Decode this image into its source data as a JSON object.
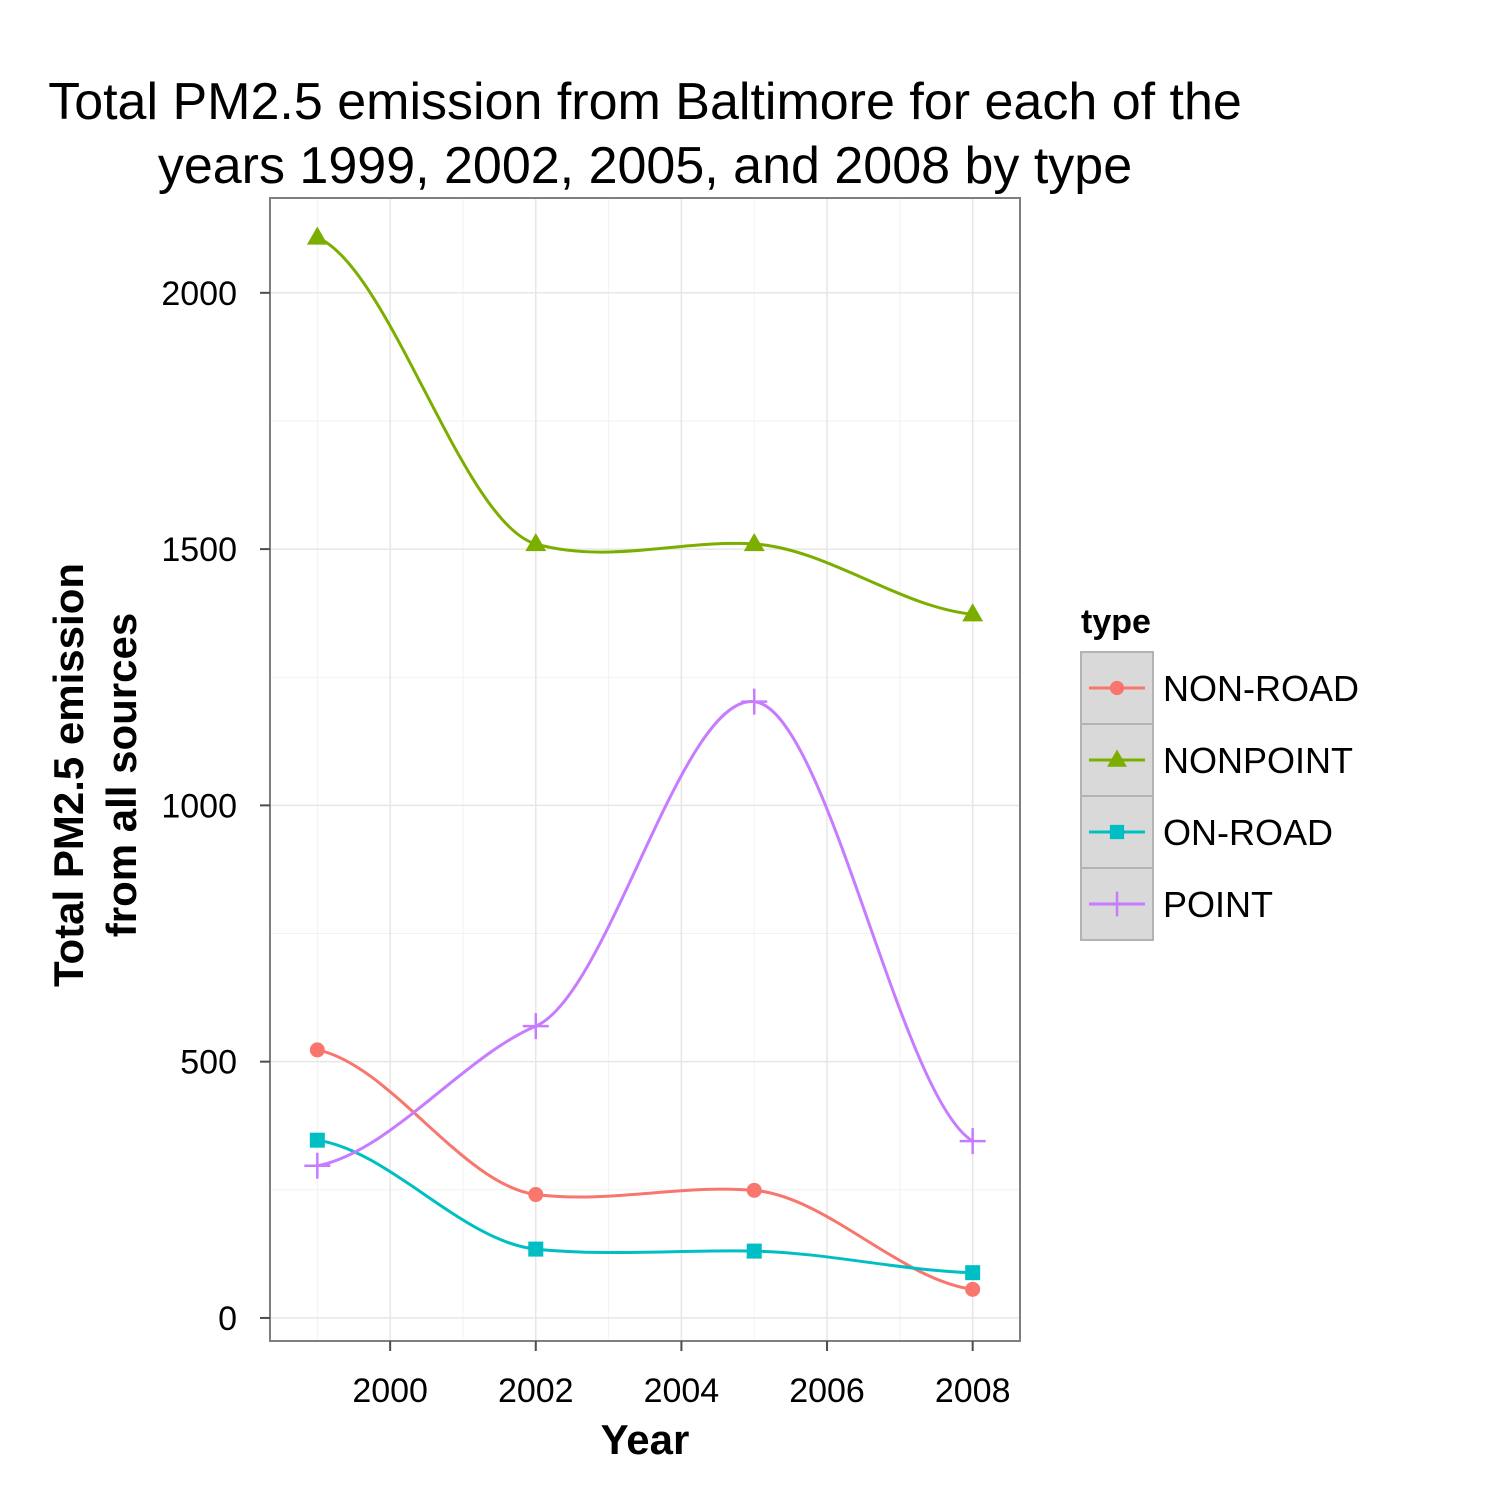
{
  "chart_data": {
    "type": "line",
    "title_lines": [
      "Total PM2.5 emission from Baltimore for each of the",
      "years 1999, 2002, 2005, and 2008 by type"
    ],
    "xlabel": "Year",
    "ylabel_lines": [
      "Total PM2.5 emission",
      "from all sources"
    ],
    "xlim": [
      1998.35,
      2008.65
    ],
    "ylim": [
      -45,
      2185
    ],
    "x_ticks": [
      2000,
      2002,
      2004,
      2006,
      2008
    ],
    "y_ticks": [
      0,
      500,
      1000,
      1500,
      2000
    ],
    "x_tick_labels": [
      "2000",
      "2002",
      "2004",
      "2006",
      "2008"
    ],
    "y_tick_labels": [
      "0",
      "500",
      "1000",
      "1500",
      "2000"
    ],
    "x": [
      1999,
      2002,
      2005,
      2008
    ],
    "grid": true,
    "legend": {
      "title": "type",
      "placement": "right"
    },
    "series": [
      {
        "name": "NON-ROAD",
        "values": [
          522.9,
          240.8,
          248.9,
          55.8
        ],
        "color": "#F8766D",
        "marker": "circle"
      },
      {
        "name": "NONPOINT",
        "values": [
          2108,
          1510,
          1510,
          1373
        ],
        "color": "#7CAE00",
        "marker": "triangle"
      },
      {
        "name": "ON-ROAD",
        "values": [
          346.8,
          134.3,
          130.4,
          88.3
        ],
        "color": "#00BFC4",
        "marker": "square"
      },
      {
        "name": "POINT",
        "values": [
          296.8,
          569.3,
          1202.5,
          344.98
        ],
        "color": "#C77CFF",
        "marker": "plus"
      }
    ]
  }
}
